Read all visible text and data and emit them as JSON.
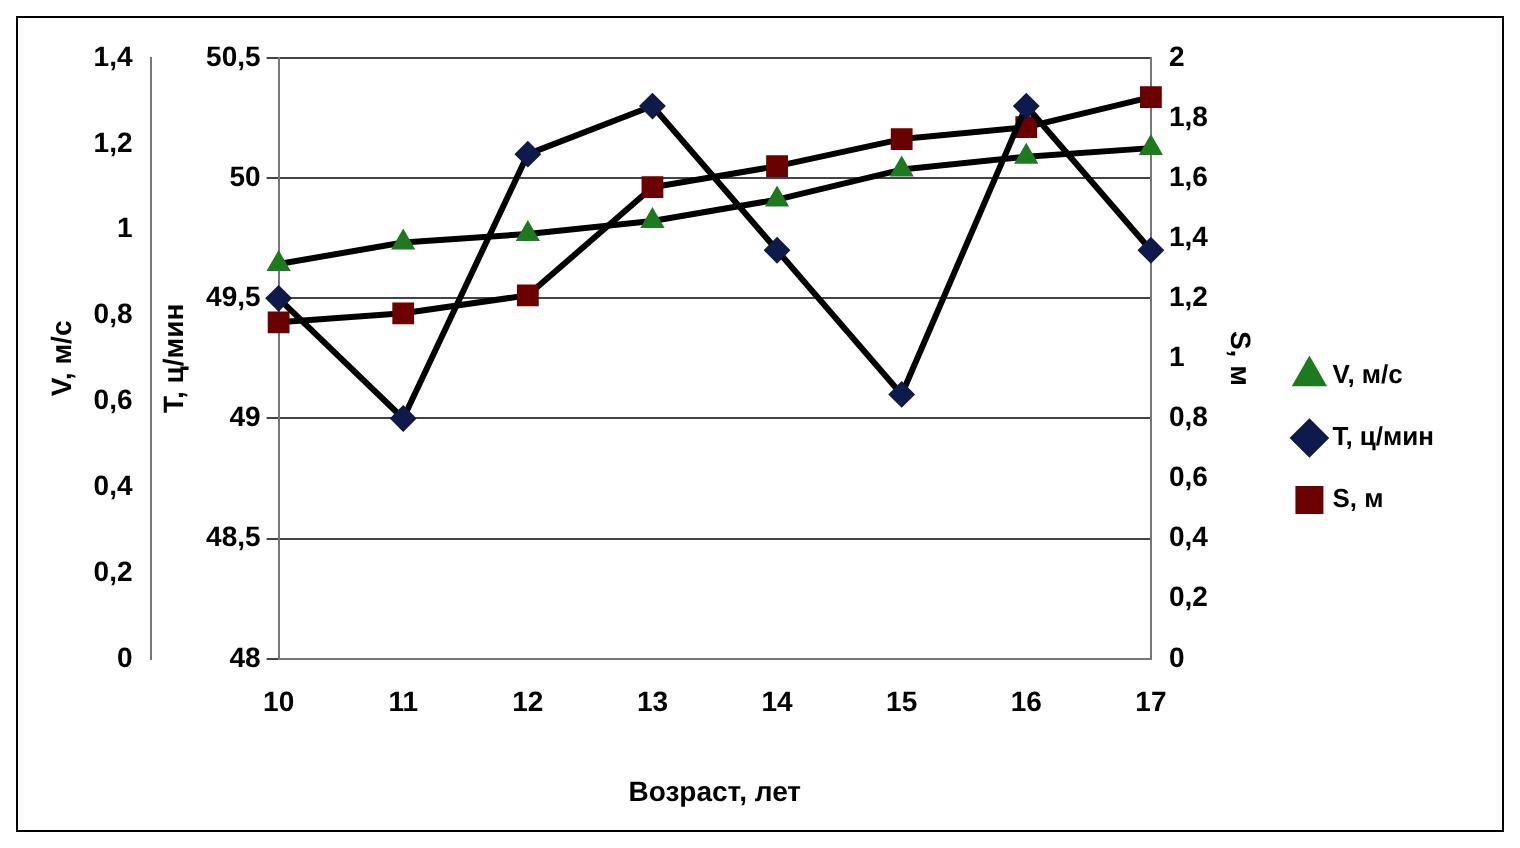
{
  "chart_data": {
    "type": "line",
    "xlabel": "Возраст, лет",
    "ylabel": "T, ц/мин",
    "y2label": "S, м",
    "y3label": "V, м/с",
    "categories": [
      "10",
      "11",
      "12",
      "13",
      "14",
      "15",
      "16",
      "17"
    ],
    "series": [
      {
        "name": "V, м/с",
        "color": "#1e7a1e",
        "marker": "triangle",
        "axis": "y3",
        "values": [
          0.92,
          0.97,
          0.99,
          1.02,
          1.07,
          1.14,
          1.17,
          1.19
        ]
      },
      {
        "name": "T, ц/мин",
        "color": "#0d1a4a",
        "marker": "diamond",
        "values": [
          49.5,
          49,
          50.1,
          50.3,
          49.7,
          49.1,
          50.3,
          49.7
        ]
      },
      {
        "name": "S, м",
        "color": "#6b0000",
        "marker": "square",
        "axis": "y2",
        "values": [
          1.12,
          1.15,
          1.21,
          1.57,
          1.64,
          1.73,
          1.77,
          1.87
        ]
      }
    ],
    "ylim": [
      48,
      50.5
    ],
    "yticks": [
      {
        "value": 48,
        "label": "48"
      },
      {
        "value": 48.5,
        "label": "48,5"
      },
      {
        "value": 49,
        "label": "49"
      },
      {
        "value": 49.5,
        "label": "49,5"
      },
      {
        "value": 50,
        "label": "50"
      },
      {
        "value": 50.5,
        "label": "50,5"
      }
    ],
    "y2lim": [
      0,
      2
    ],
    "y2ticks": [
      {
        "value": 0,
        "label": "0"
      },
      {
        "value": 0.2,
        "label": "0,2"
      },
      {
        "value": 0.4,
        "label": "0,4"
      },
      {
        "value": 0.6,
        "label": "0,6"
      },
      {
        "value": 0.8,
        "label": "0,8"
      },
      {
        "value": 1,
        "label": "1"
      },
      {
        "value": 1.2,
        "label": "1,2"
      },
      {
        "value": 1.4,
        "label": "1,4"
      },
      {
        "value": 1.6,
        "label": "1,6"
      },
      {
        "value": 1.8,
        "label": "1,8"
      },
      {
        "value": 2,
        "label": "2"
      }
    ],
    "y3lim": [
      0,
      1.4
    ],
    "y3ticks": [
      {
        "value": 0,
        "label": "0"
      },
      {
        "value": 0.2,
        "label": "0,2"
      },
      {
        "value": 0.4,
        "label": "0,4"
      },
      {
        "value": 0.6,
        "label": "0,6"
      },
      {
        "value": 0.8,
        "label": "0,8"
      },
      {
        "value": 1,
        "label": "1"
      },
      {
        "value": 1.2,
        "label": "1,2"
      },
      {
        "value": 1.4,
        "label": "1,4"
      }
    ],
    "grid": "y",
    "legend": "right",
    "line_style": "solid"
  }
}
